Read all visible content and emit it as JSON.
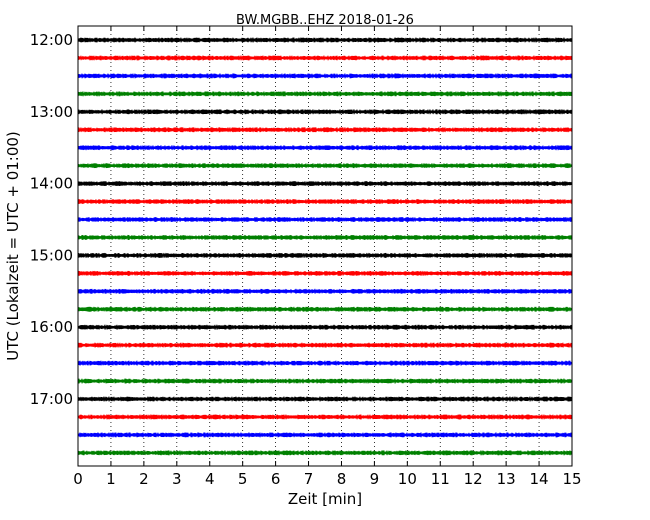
{
  "chart_data": {
    "type": "line",
    "subtype": "seismogram-dayplot",
    "title": "BW.MGBB..EHZ 2018-01-26",
    "xlabel": "Zeit  [min]",
    "ylabel": "UTC (Lokalzeit = UTC + 01:00)",
    "xlim": [
      0,
      15
    ],
    "x_ticks": [
      0,
      1,
      2,
      3,
      4,
      5,
      6,
      7,
      8,
      9,
      10,
      11,
      12,
      13,
      14,
      15
    ],
    "x_tick_labels": [
      "0",
      "1",
      "2",
      "3",
      "4",
      "5",
      "6",
      "7",
      "8",
      "9",
      "10",
      "11",
      "12",
      "13",
      "14",
      "15"
    ],
    "y_tick_labels": [
      "12:00",
      "13:00",
      "14:00",
      "15:00",
      "16:00",
      "17:00"
    ],
    "row_interval_minutes": 15,
    "color_cycle": [
      "#000000",
      "#ff0000",
      "#0000ff",
      "#008000"
    ],
    "grid": {
      "vertical_dotted": true,
      "horizontal": false
    },
    "series": [
      {
        "start": "12:00"
      },
      {
        "start": "12:15"
      },
      {
        "start": "12:30"
      },
      {
        "start": "12:45"
      },
      {
        "start": "13:00"
      },
      {
        "start": "13:15"
      },
      {
        "start": "13:30"
      },
      {
        "start": "13:45"
      },
      {
        "start": "14:00"
      },
      {
        "start": "14:15"
      },
      {
        "start": "14:30"
      },
      {
        "start": "14:45"
      },
      {
        "start": "15:00"
      },
      {
        "start": "15:15"
      },
      {
        "start": "15:30"
      },
      {
        "start": "15:45"
      },
      {
        "start": "16:00"
      },
      {
        "start": "16:15"
      },
      {
        "start": "16:30"
      },
      {
        "start": "16:45"
      },
      {
        "start": "17:00"
      },
      {
        "start": "17:15"
      },
      {
        "start": "17:30"
      },
      {
        "start": "17:45"
      }
    ]
  }
}
